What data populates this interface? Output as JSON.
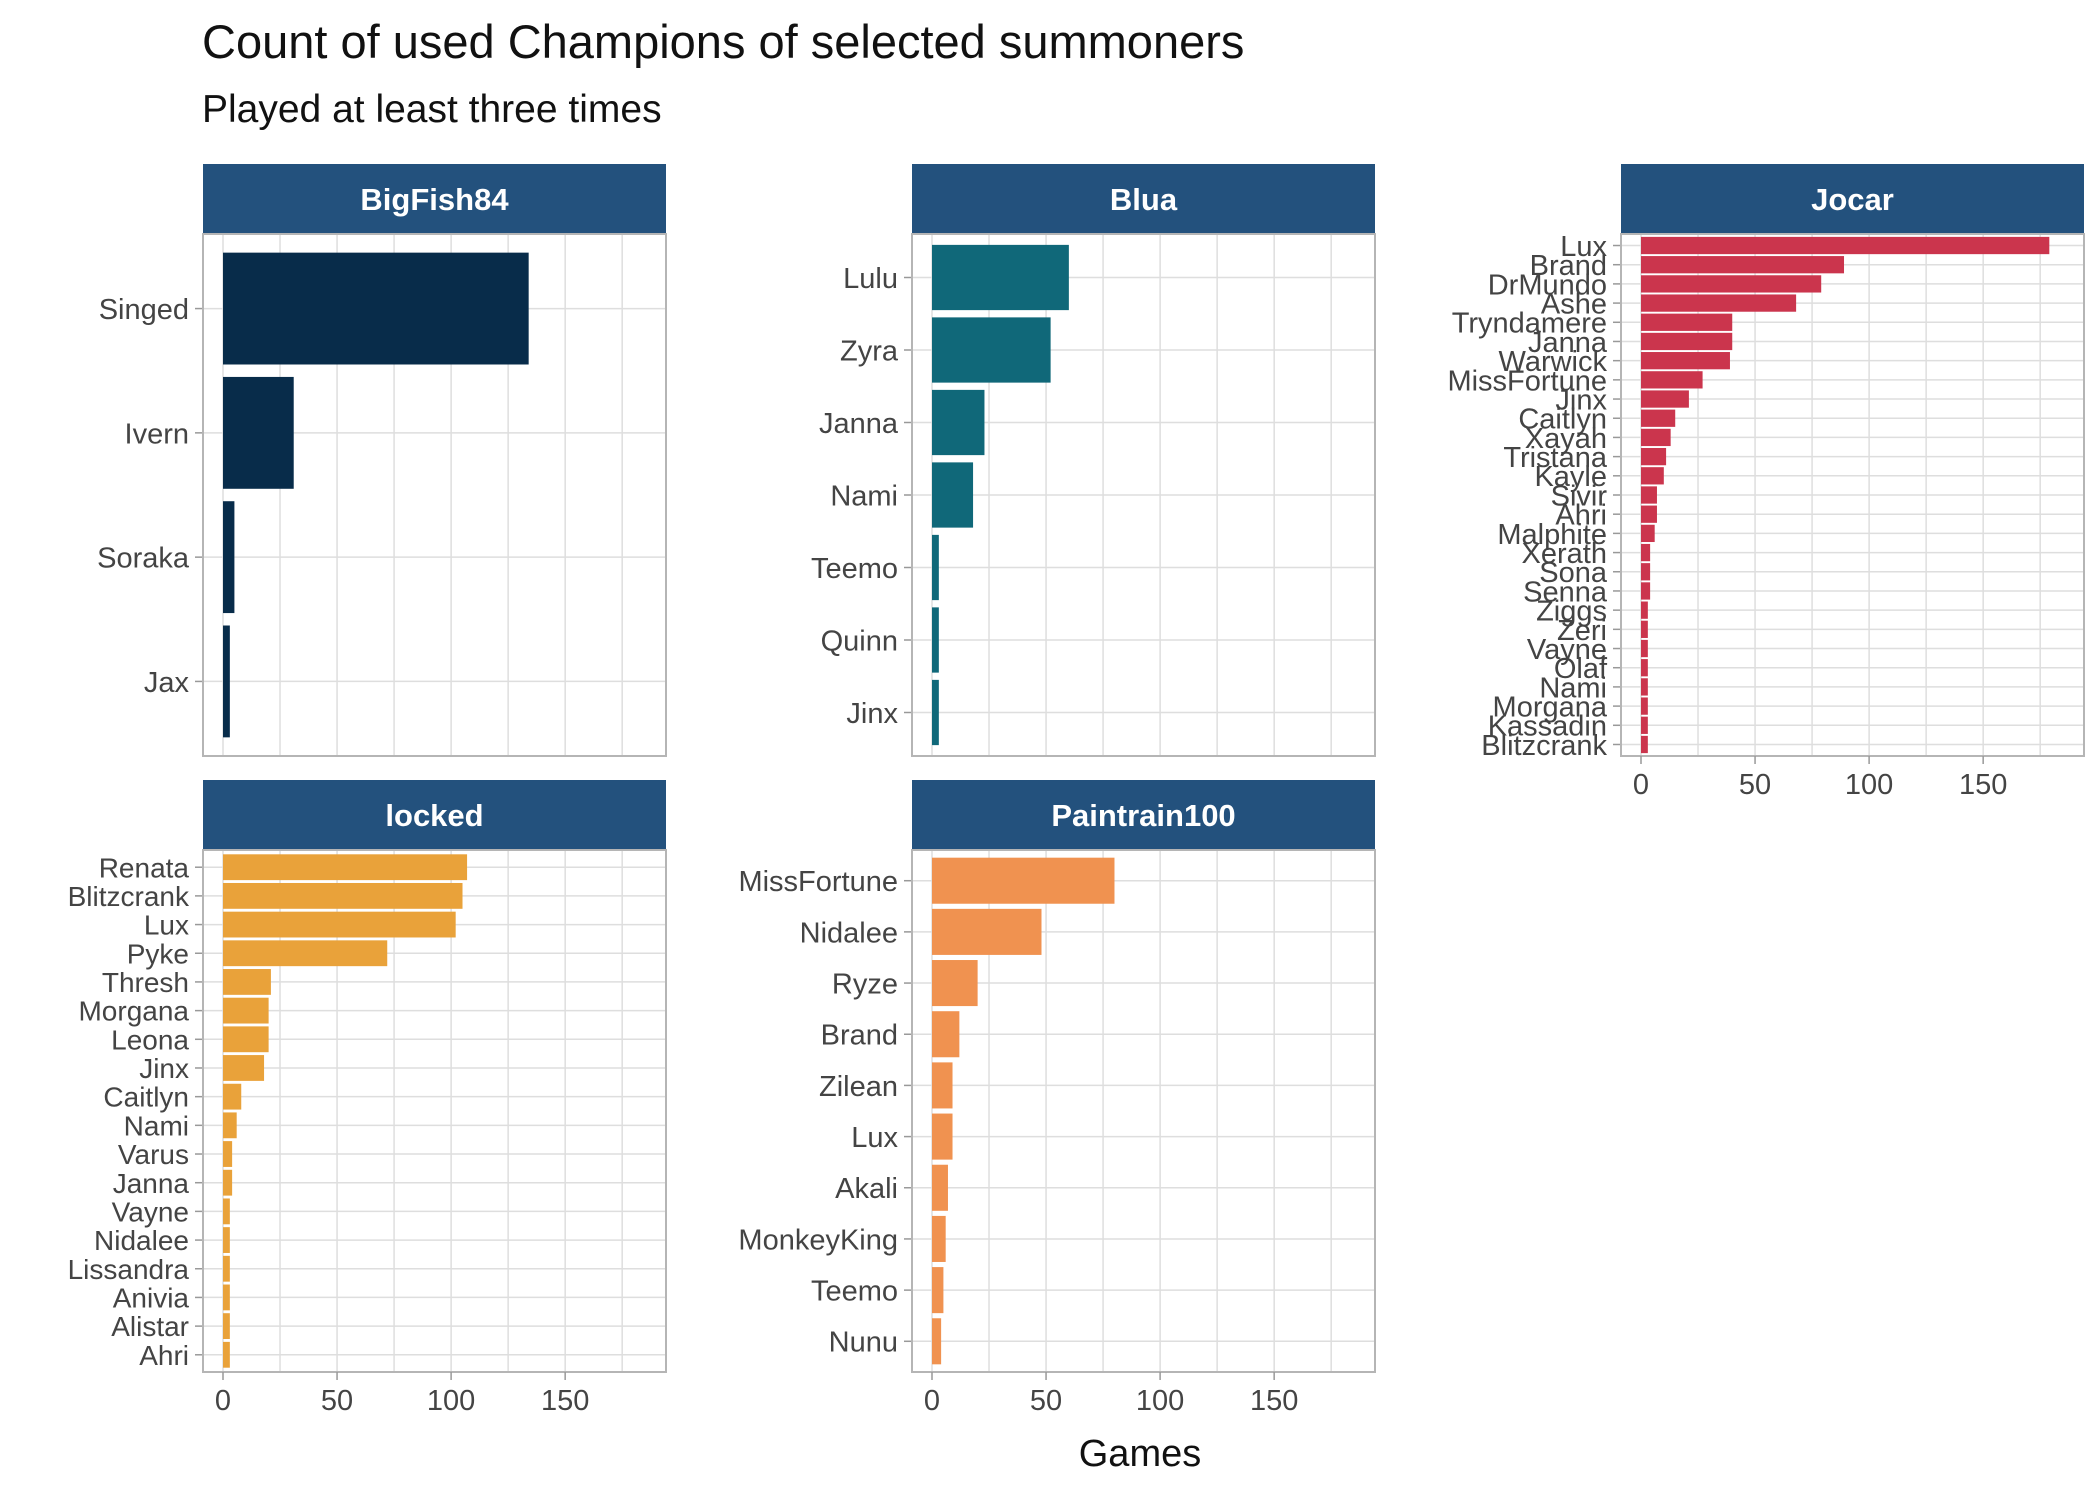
{
  "chart_data": {
    "type": "bar",
    "orientation": "horizontal",
    "title": "Count of used Champions of selected summoners",
    "subtitle": "Played at least three times",
    "xlabel": "Games",
    "ylabel": "",
    "xlim": [
      0,
      185
    ],
    "x_ticks": [
      0,
      50,
      100,
      150
    ],
    "grid": true,
    "strip_color": "#23517D",
    "panels": [
      {
        "name": "BigFish84",
        "color": "#082C4A",
        "categories": [
          "Singed",
          "Ivern",
          "Soraka",
          "Jax"
        ],
        "values": [
          134,
          31,
          5,
          3
        ]
      },
      {
        "name": "Blua",
        "color": "#106879",
        "categories": [
          "Lulu",
          "Zyra",
          "Janna",
          "Nami",
          "Teemo",
          "Quinn",
          "Jinx"
        ],
        "values": [
          60,
          52,
          23,
          18,
          3,
          3,
          3
        ]
      },
      {
        "name": "Jocar",
        "color": "#CB354D",
        "categories": [
          "Lux",
          "Brand",
          "DrMundo",
          "Ashe",
          "Tryndamere",
          "Janna",
          "Warwick",
          "MissFortune",
          "Jinx",
          "Caitlyn",
          "Xayah",
          "Tristana",
          "Kayle",
          "Sivir",
          "Ahri",
          "Malphite",
          "Xerath",
          "Sona",
          "Senna",
          "Ziggs",
          "Zeri",
          "Vayne",
          "Olaf",
          "Nami",
          "Morgana",
          "Kassadin",
          "Blitzcrank"
        ],
        "values": [
          179,
          89,
          79,
          68,
          40,
          40,
          39,
          27,
          21,
          15,
          13,
          11,
          10,
          7,
          7,
          6,
          4,
          4,
          4,
          3,
          3,
          3,
          3,
          3,
          3,
          3,
          3
        ]
      },
      {
        "name": "locked",
        "color": "#E9A23A",
        "categories": [
          "Renata",
          "Blitzcrank",
          "Lux",
          "Pyke",
          "Thresh",
          "Morgana",
          "Leona",
          "Jinx",
          "Caitlyn",
          "Nami",
          "Varus",
          "Janna",
          "Vayne",
          "Nidalee",
          "Lissandra",
          "Anivia",
          "Alistar",
          "Ahri"
        ],
        "values": [
          107,
          105,
          102,
          72,
          21,
          20,
          20,
          18,
          8,
          6,
          4,
          4,
          3,
          3,
          3,
          3,
          3,
          3
        ]
      },
      {
        "name": "Paintrain100",
        "color": "#F09250",
        "categories": [
          "MissFortune",
          "Nidalee",
          "Ryze",
          "Brand",
          "Zilean",
          "Lux",
          "Akali",
          "MonkeyKing",
          "Teemo",
          "Nunu"
        ],
        "values": [
          80,
          48,
          20,
          12,
          9,
          9,
          7,
          6,
          5,
          4
        ]
      }
    ]
  }
}
